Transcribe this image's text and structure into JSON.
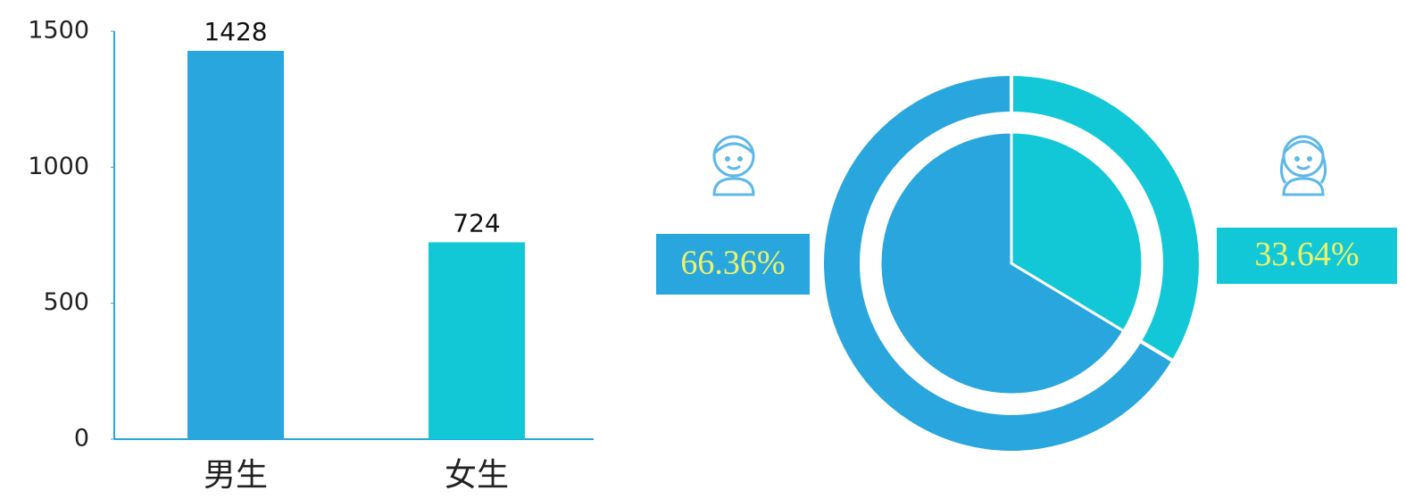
{
  "chart_data": [
    {
      "type": "bar",
      "categories": [
        "男生",
        "女生"
      ],
      "values": [
        1428,
        724
      ],
      "colors": [
        "#29a6de",
        "#13c8d6"
      ],
      "ylim": [
        0,
        1500
      ],
      "yticks": [
        0,
        500,
        1000,
        1500
      ]
    },
    {
      "type": "pie",
      "values": [
        66.36,
        33.64
      ],
      "value_labels": [
        "66.36%",
        "33.64%"
      ],
      "colors": [
        "#29a6de",
        "#13c8d6"
      ]
    }
  ]
}
